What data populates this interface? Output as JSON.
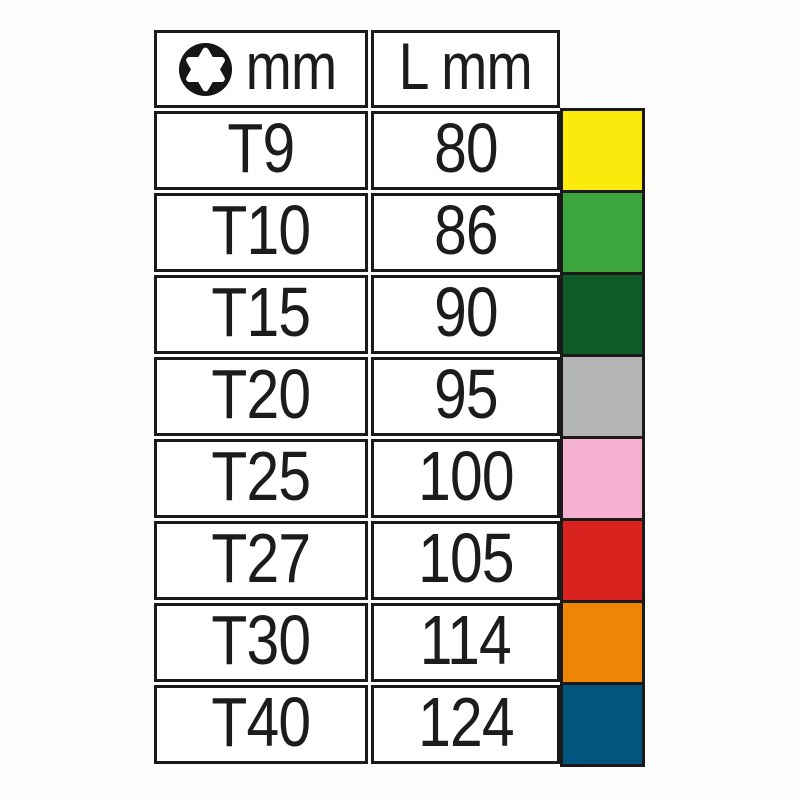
{
  "chart_data": {
    "type": "table",
    "columns": [
      {
        "label": "mm",
        "icon": "torx-icon"
      },
      {
        "label": "L mm"
      }
    ],
    "rows": [
      {
        "size": "T9",
        "length_mm": "80",
        "swatch": "yellow",
        "swatch_hex": "#FCEA0D"
      },
      {
        "size": "T10",
        "length_mm": "86",
        "swatch": "green",
        "swatch_hex": "#3CA63C"
      },
      {
        "size": "T15",
        "length_mm": "90",
        "swatch": "dark-green",
        "swatch_hex": "#0E5B28"
      },
      {
        "size": "T20",
        "length_mm": "95",
        "swatch": "gray",
        "swatch_hex": "#B3B5B4"
      },
      {
        "size": "T25",
        "length_mm": "100",
        "swatch": "pink",
        "swatch_hex": "#F4B1CF"
      },
      {
        "size": "T27",
        "length_mm": "105",
        "swatch": "red",
        "swatch_hex": "#D8231F"
      },
      {
        "size": "T30",
        "length_mm": "114",
        "swatch": "orange",
        "swatch_hex": "#EF8504"
      },
      {
        "size": "T40",
        "length_mm": "124",
        "swatch": "blue",
        "swatch_hex": "#045480"
      }
    ]
  },
  "style": {
    "border_color": "#1A1A1A",
    "text_color": "#1C1C1C",
    "cell_bg": "#FFFFFF"
  }
}
